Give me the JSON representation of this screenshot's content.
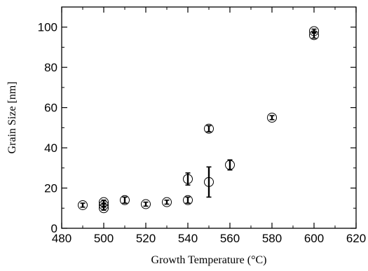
{
  "chart_data": {
    "type": "scatter",
    "xlabel": "Growth Temperature (°C)",
    "ylabel": "Grain Size [nm]",
    "xlim": [
      480,
      620
    ],
    "ylim": [
      0,
      110
    ],
    "xticks": [
      480,
      500,
      520,
      540,
      560,
      580,
      600,
      620
    ],
    "yticks": [
      0,
      20,
      40,
      60,
      80,
      100
    ],
    "xtick_labels": [
      "480",
      "500",
      "520",
      "540",
      "560",
      "580",
      "600",
      "620"
    ],
    "ytick_labels": [
      "0",
      "20",
      "40",
      "60",
      "80",
      "100"
    ],
    "grid": false,
    "marker": "open-circle",
    "points": [
      {
        "x": 490,
        "y": 11.5,
        "err": 1
      },
      {
        "x": 500,
        "y": 13,
        "err": 1
      },
      {
        "x": 500,
        "y": 11.5,
        "err": 1
      },
      {
        "x": 500,
        "y": 10,
        "err": 1
      },
      {
        "x": 510,
        "y": 14,
        "err": 1.5
      },
      {
        "x": 520,
        "y": 12,
        "err": 1
      },
      {
        "x": 530,
        "y": 13,
        "err": 1
      },
      {
        "x": 540,
        "y": 14,
        "err": 1.5
      },
      {
        "x": 540,
        "y": 24.5,
        "err": 3
      },
      {
        "x": 550,
        "y": 23,
        "err": 7.5
      },
      {
        "x": 550,
        "y": 49.5,
        "err": 1.5
      },
      {
        "x": 560,
        "y": 31.5,
        "err": 2.5
      },
      {
        "x": 580,
        "y": 55,
        "err": 1
      },
      {
        "x": 600,
        "y": 96,
        "err": 1.5
      },
      {
        "x": 600,
        "y": 98,
        "err": 1
      }
    ]
  }
}
